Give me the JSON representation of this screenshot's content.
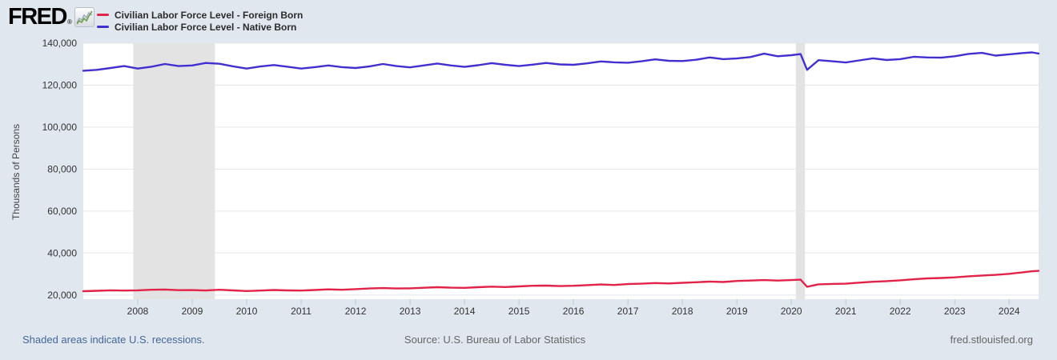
{
  "header": {
    "logo_text": "FRED",
    "logo_registered": "®",
    "legend": [
      {
        "label": "Civilian Labor Force Level - Foreign Born",
        "color": "#e32249"
      },
      {
        "label": "Civilian Labor Force Level - Native Born",
        "color": "#4130d1"
      }
    ]
  },
  "y_axis_title": "Thousands of Persons",
  "footer": {
    "recession_note": "Shaded areas indicate U.S. recessions.",
    "source": "Source: U.S. Bureau of Labor Statistics",
    "site": "fred.stlouisfed.org"
  },
  "colors": {
    "page_background": "#e0e7ee",
    "plot_background": "#ffffff",
    "gridline": "#e7e7e7",
    "recession_band": "#e3e3e3",
    "tick_mark": "#b9c8db",
    "axis_text": "#333333",
    "footer_link": "#44679a",
    "footer_text": "#666666",
    "series_foreign_born": "#e32249",
    "series_native_born": "#4130d1"
  },
  "chart_data": {
    "type": "line",
    "title": "",
    "xlabel": "",
    "ylabel": "Thousands of Persons",
    "grid": "horizontal",
    "legend_position": "top-left",
    "x_start": 2007.0,
    "x_end": 2024.54,
    "ylim": [
      18000,
      140000
    ],
    "y_ticks": [
      20000,
      40000,
      60000,
      80000,
      100000,
      120000,
      140000
    ],
    "x_ticks": [
      2008,
      2009,
      2010,
      2011,
      2012,
      2013,
      2014,
      2015,
      2016,
      2017,
      2018,
      2019,
      2020,
      2021,
      2022,
      2023,
      2024
    ],
    "recessions": [
      [
        2007.917,
        2009.417
      ],
      [
        2020.083,
        2020.25
      ]
    ],
    "series": [
      {
        "name": "Civilian Labor Force Level - Foreign Born",
        "color": "#e32249",
        "points": [
          [
            2007.0,
            21800
          ],
          [
            2007.25,
            22000
          ],
          [
            2007.5,
            22250
          ],
          [
            2007.75,
            22100
          ],
          [
            2008.0,
            22250
          ],
          [
            2008.25,
            22500
          ],
          [
            2008.5,
            22600
          ],
          [
            2008.75,
            22300
          ],
          [
            2009.0,
            22350
          ],
          [
            2009.25,
            22150
          ],
          [
            2009.5,
            22500
          ],
          [
            2009.75,
            22200
          ],
          [
            2010.0,
            21900
          ],
          [
            2010.25,
            22100
          ],
          [
            2010.5,
            22400
          ],
          [
            2010.75,
            22200
          ],
          [
            2011.0,
            22100
          ],
          [
            2011.25,
            22400
          ],
          [
            2011.5,
            22700
          ],
          [
            2011.75,
            22500
          ],
          [
            2012.0,
            22800
          ],
          [
            2012.25,
            23100
          ],
          [
            2012.5,
            23300
          ],
          [
            2012.75,
            23100
          ],
          [
            2013.0,
            23200
          ],
          [
            2013.25,
            23450
          ],
          [
            2013.5,
            23700
          ],
          [
            2013.75,
            23500
          ],
          [
            2014.0,
            23400
          ],
          [
            2014.25,
            23700
          ],
          [
            2014.5,
            24000
          ],
          [
            2014.75,
            23800
          ],
          [
            2015.0,
            24100
          ],
          [
            2015.25,
            24400
          ],
          [
            2015.5,
            24500
          ],
          [
            2015.75,
            24250
          ],
          [
            2016.0,
            24400
          ],
          [
            2016.25,
            24700
          ],
          [
            2016.5,
            25000
          ],
          [
            2016.75,
            24800
          ],
          [
            2017.0,
            25200
          ],
          [
            2017.25,
            25400
          ],
          [
            2017.5,
            25700
          ],
          [
            2017.75,
            25500
          ],
          [
            2018.0,
            25800
          ],
          [
            2018.25,
            26100
          ],
          [
            2018.5,
            26400
          ],
          [
            2018.75,
            26200
          ],
          [
            2019.0,
            26700
          ],
          [
            2019.25,
            26900
          ],
          [
            2019.5,
            27100
          ],
          [
            2019.75,
            26900
          ],
          [
            2020.0,
            27100
          ],
          [
            2020.17,
            27300
          ],
          [
            2020.29,
            23900
          ],
          [
            2020.5,
            25100
          ],
          [
            2020.75,
            25300
          ],
          [
            2021.0,
            25400
          ],
          [
            2021.25,
            25900
          ],
          [
            2021.5,
            26300
          ],
          [
            2021.75,
            26600
          ],
          [
            2022.0,
            27000
          ],
          [
            2022.25,
            27500
          ],
          [
            2022.5,
            27900
          ],
          [
            2022.75,
            28100
          ],
          [
            2023.0,
            28400
          ],
          [
            2023.25,
            28900
          ],
          [
            2023.5,
            29300
          ],
          [
            2023.75,
            29600
          ],
          [
            2024.0,
            30100
          ],
          [
            2024.25,
            30800
          ],
          [
            2024.42,
            31300
          ],
          [
            2024.54,
            31500
          ]
        ]
      },
      {
        "name": "Civilian Labor Force Level - Native Born",
        "color": "#4130d1",
        "points": [
          [
            2007.0,
            126900
          ],
          [
            2007.25,
            127300
          ],
          [
            2007.5,
            128200
          ],
          [
            2007.75,
            129100
          ],
          [
            2008.0,
            127900
          ],
          [
            2008.25,
            128800
          ],
          [
            2008.5,
            130100
          ],
          [
            2008.75,
            129100
          ],
          [
            2009.0,
            129400
          ],
          [
            2009.25,
            130600
          ],
          [
            2009.5,
            130200
          ],
          [
            2009.75,
            129000
          ],
          [
            2010.0,
            127900
          ],
          [
            2010.25,
            128900
          ],
          [
            2010.5,
            129600
          ],
          [
            2010.75,
            128800
          ],
          [
            2011.0,
            127900
          ],
          [
            2011.25,
            128600
          ],
          [
            2011.5,
            129400
          ],
          [
            2011.75,
            128600
          ],
          [
            2012.0,
            128200
          ],
          [
            2012.25,
            128900
          ],
          [
            2012.5,
            130100
          ],
          [
            2012.75,
            129100
          ],
          [
            2013.0,
            128500
          ],
          [
            2013.25,
            129400
          ],
          [
            2013.5,
            130300
          ],
          [
            2013.75,
            129400
          ],
          [
            2014.0,
            128700
          ],
          [
            2014.25,
            129500
          ],
          [
            2014.5,
            130500
          ],
          [
            2014.75,
            129700
          ],
          [
            2015.0,
            129100
          ],
          [
            2015.25,
            129800
          ],
          [
            2015.5,
            130600
          ],
          [
            2015.75,
            129900
          ],
          [
            2016.0,
            129700
          ],
          [
            2016.25,
            130400
          ],
          [
            2016.5,
            131300
          ],
          [
            2016.75,
            130900
          ],
          [
            2017.0,
            130700
          ],
          [
            2017.25,
            131400
          ],
          [
            2017.5,
            132300
          ],
          [
            2017.75,
            131600
          ],
          [
            2018.0,
            131500
          ],
          [
            2018.25,
            132100
          ],
          [
            2018.5,
            133200
          ],
          [
            2018.75,
            132400
          ],
          [
            2019.0,
            132700
          ],
          [
            2019.25,
            133400
          ],
          [
            2019.5,
            135000
          ],
          [
            2019.75,
            133800
          ],
          [
            2020.0,
            134300
          ],
          [
            2020.17,
            134800
          ],
          [
            2020.29,
            127300
          ],
          [
            2020.5,
            131900
          ],
          [
            2020.75,
            131400
          ],
          [
            2021.0,
            130800
          ],
          [
            2021.25,
            131800
          ],
          [
            2021.5,
            132800
          ],
          [
            2021.75,
            132000
          ],
          [
            2022.0,
            132400
          ],
          [
            2022.25,
            133500
          ],
          [
            2022.5,
            133200
          ],
          [
            2022.75,
            133100
          ],
          [
            2023.0,
            133800
          ],
          [
            2023.25,
            134900
          ],
          [
            2023.5,
            135400
          ],
          [
            2023.75,
            134100
          ],
          [
            2024.0,
            134700
          ],
          [
            2024.25,
            135300
          ],
          [
            2024.42,
            135600
          ],
          [
            2024.54,
            135100
          ]
        ]
      }
    ]
  }
}
